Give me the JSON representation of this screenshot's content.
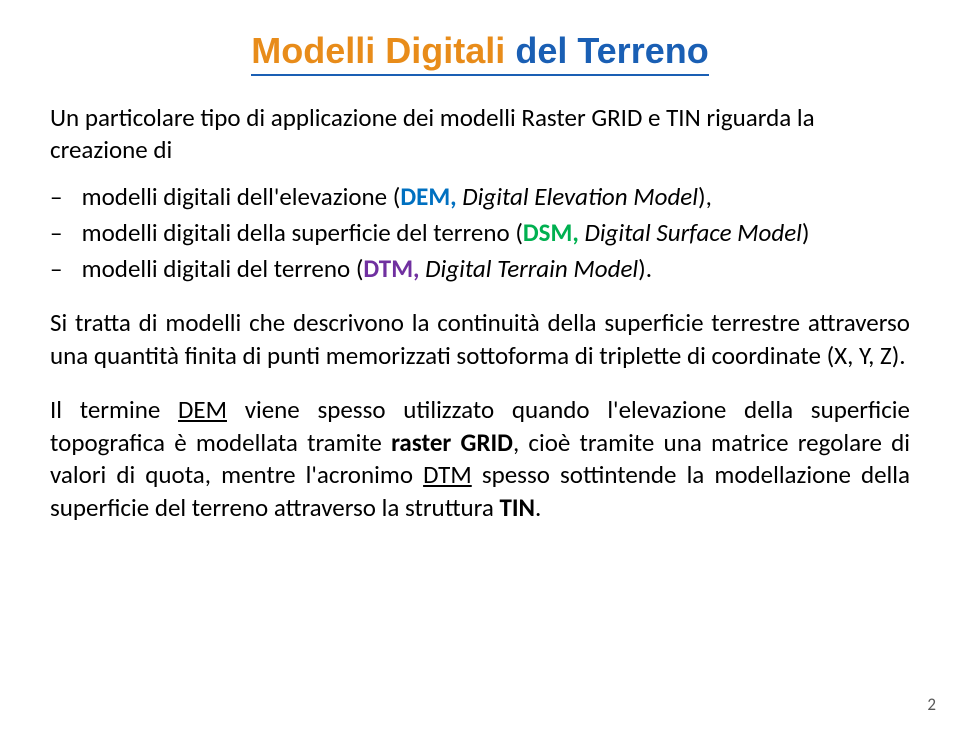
{
  "title": {
    "word1": "Modelli",
    "word2": "Digitali",
    "rest": "del Terreno",
    "colors": {
      "w1": "#e88c1a",
      "w2": "#e88c1a",
      "rest": "#1a5fb4"
    },
    "underline_color": "#1a5fb4",
    "fontsize": 36
  },
  "intro": "Un particolare tipo di applicazione dei modelli Raster GRID e TIN riguarda la creazione di",
  "bullets": [
    {
      "pre": "modelli digitali dell'elevazione (",
      "abbr": "DEM,",
      "abbr_color": "#0070c0",
      "mid": " ",
      "ital": "Digital Elevation Model",
      "post": "),"
    },
    {
      "pre": "modelli digitali della superficie del terreno (",
      "abbr": "DSM,",
      "abbr_color": "#00b050",
      "mid": " ",
      "ital": "Digital Surface Model",
      "post": ")"
    },
    {
      "pre": "modelli digitali del terreno (",
      "abbr": "DTM,",
      "abbr_color": "#7030a0",
      "mid": " ",
      "ital": "Digital Terrain Model",
      "post": ")."
    }
  ],
  "para1": "Si tratta di modelli che descrivono la continuità della superficie terrestre attraverso una quantità finita di punti memorizzati sottoforma di triplette di coordinate (X, Y, Z).",
  "para2": {
    "t0": "Il termine ",
    "dem": "DEM",
    "t1": " viene spesso utilizzato quando l'elevazione della superficie topografica è modellata tramite ",
    "bold1": "raster GRID",
    "t2": ", cioè tramite una matrice regolare di valori di quota, mentre l'acronimo ",
    "dtm": "DTM",
    "t3": " spesso sottintende la modellazione della superficie del terreno attraverso la struttura ",
    "bold2": "TIN",
    "t4": "."
  },
  "page_number": "2",
  "body_fontsize": 25,
  "background_color": "#ffffff",
  "text_color": "#000000"
}
